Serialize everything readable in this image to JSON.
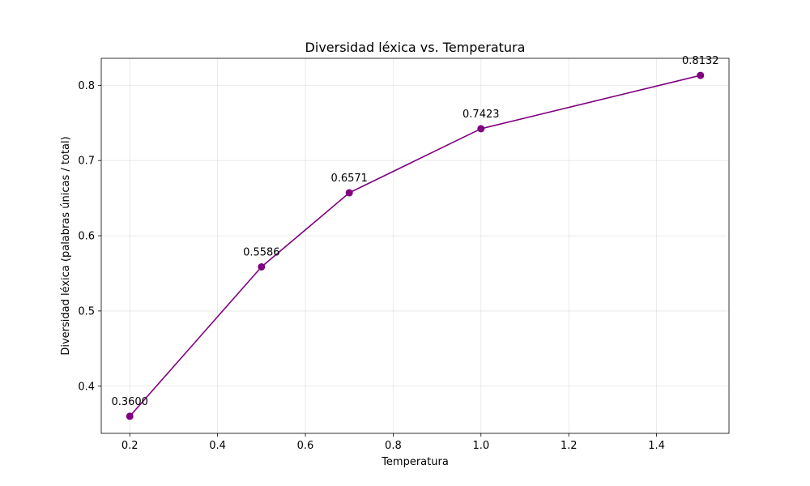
{
  "chart_data": {
    "type": "line",
    "title": "Diversidad léxica vs. Temperatura",
    "xlabel": "Temperatura",
    "ylabel": "Diversidad léxica (palabras únicas / total)",
    "x": [
      0.2,
      0.5,
      0.7,
      1.0,
      1.5
    ],
    "series": [
      {
        "values": [
          0.36,
          0.5586,
          0.6571,
          0.7423,
          0.8132
        ],
        "labels": [
          "0.3600",
          "0.5586",
          "0.6571",
          "0.7423",
          "0.8132"
        ],
        "color": "#800080",
        "marker": "circle"
      }
    ],
    "xlim": [
      0.135,
      1.565
    ],
    "ylim": [
      0.3373,
      0.8359
    ],
    "xticks": [
      0.2,
      0.4,
      0.6,
      0.8,
      1.0,
      1.2,
      1.4
    ],
    "xtick_labels": [
      "0.2",
      "0.4",
      "0.6",
      "0.8",
      "1.0",
      "1.2",
      "1.4"
    ],
    "yticks": [
      0.4,
      0.5,
      0.6,
      0.7,
      0.8
    ],
    "ytick_labels": [
      "0.4",
      "0.5",
      "0.6",
      "0.7",
      "0.8"
    ],
    "grid": true
  }
}
